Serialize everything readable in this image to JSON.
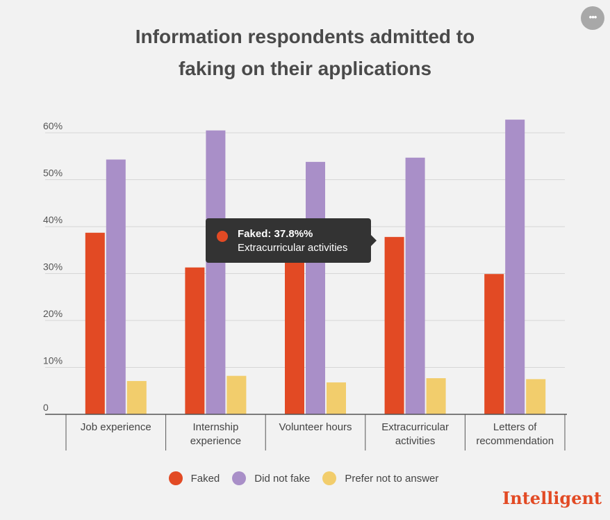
{
  "chart_data": {
    "type": "bar",
    "title": "Information respondents admitted to faking on their applications",
    "categories": [
      "Job experience",
      "Internship experience",
      "Volunteer hours",
      "Extracurricular activities",
      "Letters of recommendation"
    ],
    "category_lines": [
      [
        "Job experience"
      ],
      [
        "Internship",
        "experience"
      ],
      [
        "Volunteer hours"
      ],
      [
        "Extracurricular",
        "activities"
      ],
      [
        "Letters of",
        "recommendation"
      ]
    ],
    "series": [
      {
        "name": "Faked",
        "color": "#e24a24",
        "values": [
          38.7,
          31.3,
          32.8,
          37.8,
          29.9
        ]
      },
      {
        "name": "Did not fake",
        "color": "#a98fc8",
        "values": [
          54.3,
          60.5,
          53.8,
          54.7,
          62.8
        ]
      },
      {
        "name": "Prefer not to answer",
        "color": "#f2cd6c",
        "values": [
          7.1,
          8.2,
          6.8,
          7.7,
          7.5
        ]
      }
    ],
    "yticks": [
      0,
      10,
      20,
      30,
      40,
      50,
      60
    ],
    "ytick_labels": [
      "0",
      "10%",
      "20%",
      "30%",
      "40%",
      "50%",
      "60%"
    ],
    "ylim": [
      0,
      65
    ],
    "xlabel": "",
    "ylabel": "",
    "grid": true,
    "legend_position": "bottom"
  },
  "tooltip": {
    "value_text": "Faked: 37.8%%",
    "category_text": "Extracurricular activities",
    "color": "#e24a24"
  },
  "more_button": {
    "label": "•••"
  },
  "brand": {
    "name": "Intelligent",
    "color": "#e24a24"
  }
}
